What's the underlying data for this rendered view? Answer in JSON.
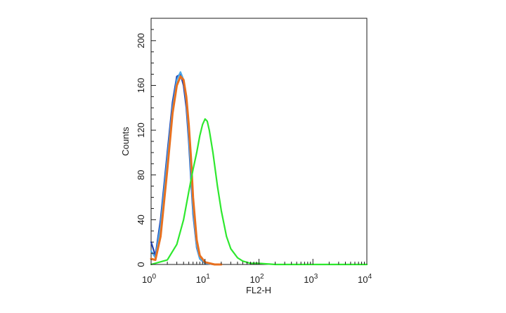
{
  "chart_data": {
    "type": "line",
    "xlabel": "FL2-H",
    "ylabel": "Counts",
    "xscale": "log",
    "xlim": [
      1,
      10000
    ],
    "ylim": [
      0,
      220
    ],
    "x_ticks": [
      {
        "value": 1,
        "base": "10",
        "exp": "0"
      },
      {
        "value": 10,
        "base": "10",
        "exp": "1"
      },
      {
        "value": 100,
        "base": "10",
        "exp": "2"
      },
      {
        "value": 1000,
        "base": "10",
        "exp": "3"
      },
      {
        "value": 10000,
        "base": "10",
        "exp": "4"
      }
    ],
    "y_ticks": [
      "0",
      "40",
      "80",
      "120",
      "160",
      "200"
    ],
    "grid": false,
    "legend": "none",
    "series": [
      {
        "color": "#1f3fb0",
        "x": [
          1.0,
          1.2,
          1.5,
          2.0,
          2.5,
          3.0,
          3.5,
          4.0,
          4.5,
          5.0,
          5.5,
          6.0,
          7.0,
          8.0,
          10.0,
          15.0,
          20.0
        ],
        "y": [
          20,
          8,
          40,
          100,
          145,
          168,
          170,
          160,
          140,
          110,
          75,
          45,
          15,
          5,
          1,
          0,
          0
        ]
      },
      {
        "color": "#4aa8e8",
        "x": [
          1.0,
          1.2,
          1.5,
          2.0,
          2.5,
          3.0,
          3.5,
          4.0,
          4.5,
          5.0,
          5.5,
          6.0,
          7.0,
          8.0,
          10.0,
          15.0
        ],
        "y": [
          12,
          6,
          35,
          95,
          140,
          165,
          172,
          165,
          145,
          115,
          80,
          48,
          16,
          5,
          1,
          0
        ]
      },
      {
        "color": "#e8701f",
        "x": [
          1.0,
          1.2,
          1.5,
          2.0,
          2.5,
          3.0,
          3.5,
          4.0,
          4.5,
          5.0,
          5.5,
          6.0,
          7.0,
          8.0,
          10.0,
          15.0,
          20.0
        ],
        "y": [
          5,
          4,
          25,
          85,
          135,
          160,
          168,
          165,
          150,
          125,
          95,
          60,
          22,
          8,
          2,
          0,
          0
        ]
      },
      {
        "color": "#2ee82e",
        "x": [
          1.0,
          2.0,
          3.0,
          4.0,
          5.0,
          6.0,
          7.0,
          8.0,
          9.0,
          10.0,
          11.0,
          12.0,
          14.0,
          17.0,
          20.0,
          25.0,
          30.0,
          40.0,
          50.0,
          70.0,
          100.0,
          200.0,
          1000.0,
          10000.0
        ],
        "y": [
          0,
          4,
          18,
          40,
          65,
          85,
          100,
          115,
          125,
          130,
          128,
          120,
          100,
          70,
          48,
          25,
          14,
          6,
          3,
          1,
          1,
          0,
          0,
          0
        ]
      }
    ]
  }
}
